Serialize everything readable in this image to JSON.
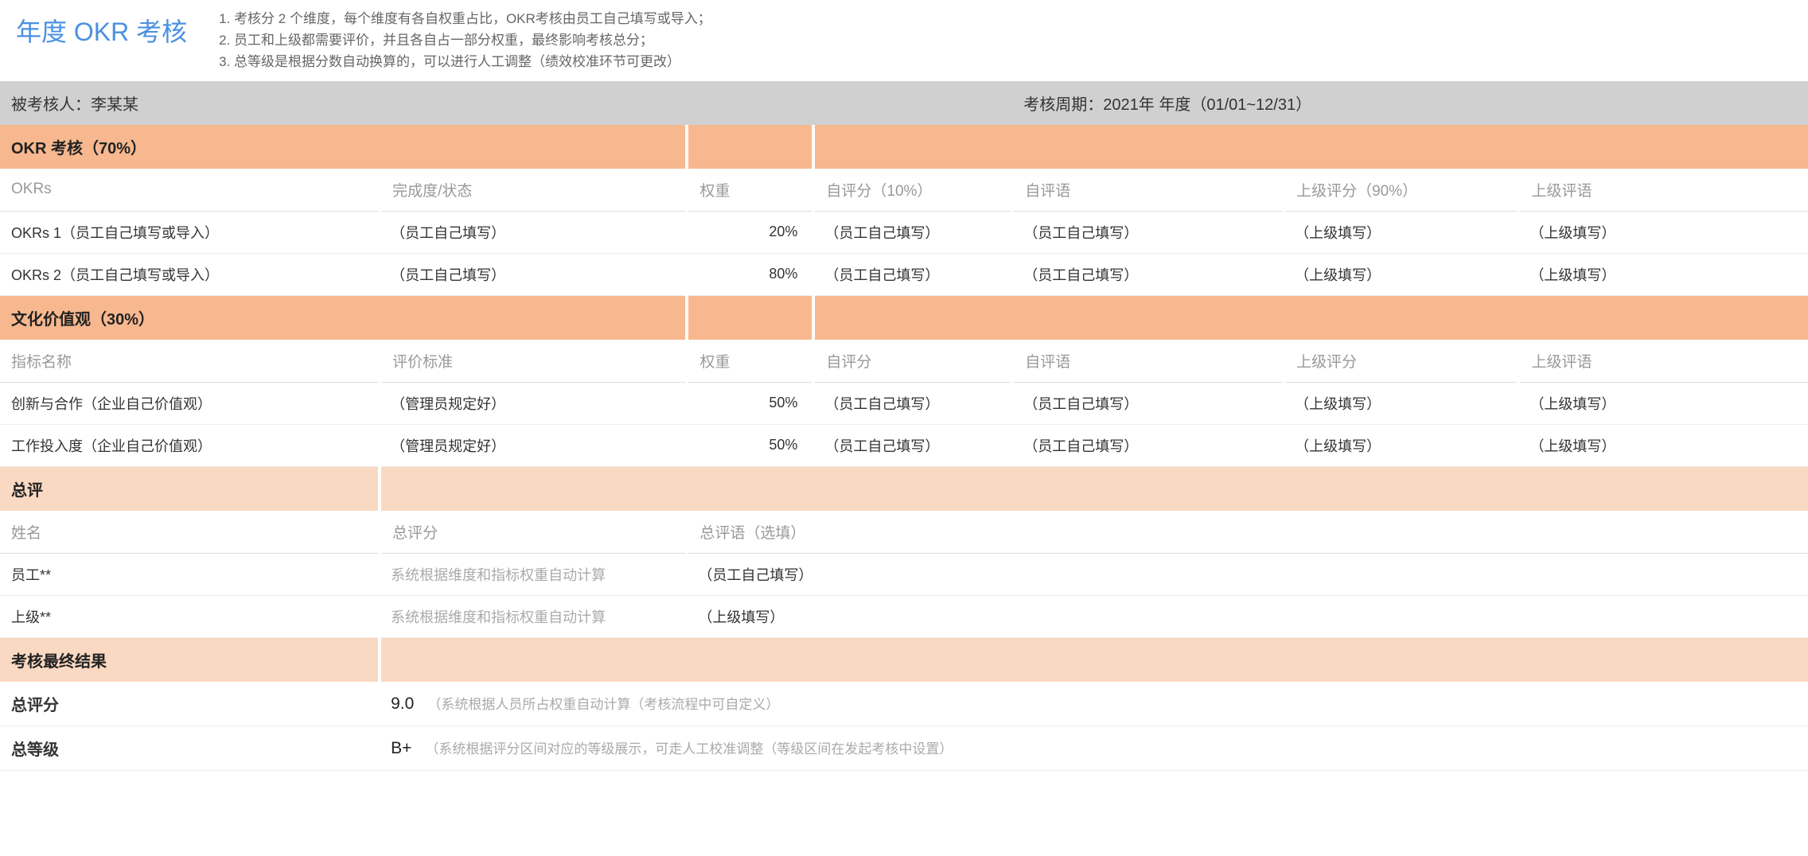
{
  "title": "年度 OKR 考核",
  "notes": [
    "考核分 2 个维度，每个维度有各自权重占比，OKR考核由员工自己填写或导入；",
    "员工和上级都需要评价，并且各自占一部分权重，最终影响考核总分；",
    "总等级是根据分数自动换算的，可以进行人工调整（绩效校准环节可更改）"
  ],
  "info": {
    "assessee_label": "被考核人：李某某",
    "period_label": "考核周期：2021年 年度（01/01~12/31）"
  },
  "section_okr": {
    "title": "OKR 考核（70%）",
    "headers": {
      "c1": "OKRs",
      "c2": "完成度/状态",
      "c3": "权重",
      "c4": "自评分（10%）",
      "c5": "自评语",
      "c6": "上级评分（90%）",
      "c7": "上级评语"
    },
    "rows": [
      {
        "c1": "OKRs 1（员工自己填写或导入）",
        "c2": "（员工自己填写）",
        "c3": "20%",
        "c4": "（员工自己填写）",
        "c5": "（员工自己填写）",
        "c6": "（上级填写）",
        "c7": "（上级填写）"
      },
      {
        "c1": "OKRs 2（员工自己填写或导入）",
        "c2": "（员工自己填写）",
        "c3": "80%",
        "c4": "（员工自己填写）",
        "c5": "（员工自己填写）",
        "c6": "（上级填写）",
        "c7": "（上级填写）"
      }
    ]
  },
  "section_culture": {
    "title": "文化价值观（30%）",
    "headers": {
      "c1": "指标名称",
      "c2": "评价标准",
      "c3": "权重",
      "c4": "自评分",
      "c5": "自评语",
      "c6": "上级评分",
      "c7": "上级评语"
    },
    "rows": [
      {
        "c1": "创新与合作（企业自己价值观）",
        "c2": "（管理员规定好）",
        "c3": "50%",
        "c4": "（员工自己填写）",
        "c5": "（员工自己填写）",
        "c6": "（上级填写）",
        "c7": "（上级填写）"
      },
      {
        "c1": "工作投入度（企业自己价值观）",
        "c2": "（管理员规定好）",
        "c3": "50%",
        "c4": "（员工自己填写）",
        "c5": "（员工自己填写）",
        "c6": "（上级填写）",
        "c7": "（上级填写）"
      }
    ]
  },
  "section_summary": {
    "title": "总评",
    "headers": {
      "c1": "姓名",
      "c2": "总评分",
      "c3": "总评语（选填）"
    },
    "rows": [
      {
        "c1": "员工**",
        "c2": "系统根据维度和指标权重自动计算",
        "c3": "（员工自己填写）"
      },
      {
        "c1": "上级**",
        "c2": "系统根据维度和指标权重自动计算",
        "c3": "（上级填写）"
      }
    ]
  },
  "section_result": {
    "title": "考核最终结果",
    "score_label": "总评分",
    "score_value": "9.0",
    "score_note": "（系统根据人员所占权重自动计算（考核流程中可自定义）",
    "grade_label": "总等级",
    "grade_value": "B+",
    "grade_note": "（系统根据评分区间对应的等级展示，可走人工校准调整（等级区间在发起考核中设置）"
  },
  "colors": {
    "title_color": "#4a90e2",
    "orange_dark": "#f7b88f",
    "orange_light": "#fad9c2",
    "gray_bg": "#d0d0d0",
    "muted_text": "#aaa",
    "header_text": "#999"
  }
}
